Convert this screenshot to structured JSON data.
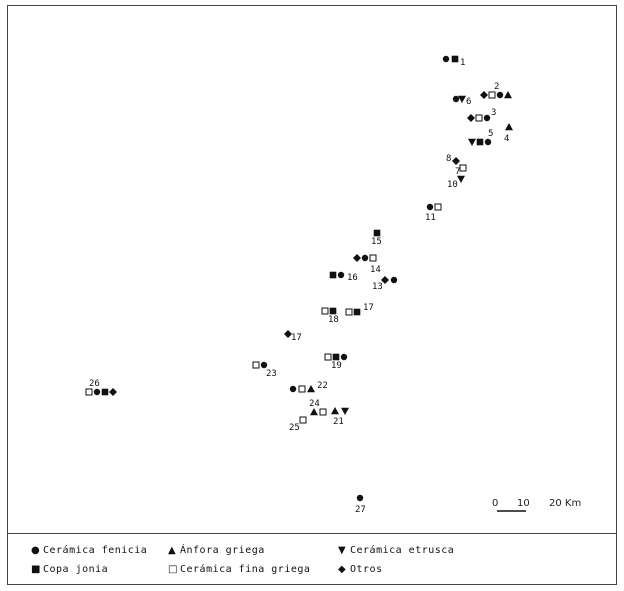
{
  "legend": [
    {
      "symbol": "●",
      "label": "Cerámica fenicia",
      "icon": "circle-icon"
    },
    {
      "symbol": "▲",
      "label": "Ánfora griega",
      "icon": "triangle-up-icon"
    },
    {
      "symbol": "▼",
      "label": "Cerámica etrusca",
      "icon": "triangle-down-icon"
    },
    {
      "symbol": "■",
      "label": "Copa jonia",
      "icon": "filled-square-icon"
    },
    {
      "symbol": "□",
      "label": "Cerámica fina griega",
      "icon": "open-square-icon"
    },
    {
      "symbol": "◆",
      "label": "Otros",
      "icon": "diamond-icon"
    }
  ],
  "scale_bar": {
    "labels": [
      "0",
      "10",
      "20 Km"
    ]
  },
  "sites": [
    {
      "number": "1",
      "finds": [
        "circle",
        "filled-square"
      ]
    },
    {
      "number": "2",
      "finds": [
        "diamond",
        "open-square",
        "circle",
        "triangle-up"
      ]
    },
    {
      "number": "3",
      "finds": [
        "diamond",
        "open-square",
        "circle"
      ]
    },
    {
      "number": "4",
      "finds": [
        "triangle-up"
      ]
    },
    {
      "number": "5",
      "finds": [
        "triangle-down",
        "filled-square",
        "circle"
      ]
    },
    {
      "number": "6",
      "finds": [
        "circle",
        "triangle-down"
      ]
    },
    {
      "number": "7",
      "finds": [
        "open-square"
      ]
    },
    {
      "number": "8",
      "finds": [
        "diamond"
      ]
    },
    {
      "number": "10",
      "finds": [
        "triangle-down"
      ]
    },
    {
      "number": "11",
      "finds": [
        "circle",
        "open-square"
      ]
    },
    {
      "number": "13",
      "finds": [
        "diamond",
        "circle"
      ]
    },
    {
      "number": "14",
      "finds": [
        "diamond",
        "circle",
        "open-square"
      ]
    },
    {
      "number": "15",
      "finds": [
        "filled-square"
      ]
    },
    {
      "number": "16",
      "finds": [
        "filled-square",
        "circle"
      ]
    },
    {
      "number": "17",
      "finds": [
        "open-square",
        "filled-square"
      ]
    },
    {
      "number": "17",
      "finds": [
        "diamond"
      ]
    },
    {
      "number": "18",
      "finds": [
        "open-square",
        "filled-square"
      ]
    },
    {
      "number": "19",
      "finds": [
        "open-square",
        "filled-square",
        "circle"
      ]
    },
    {
      "number": "21",
      "finds": [
        "triangle-up",
        "triangle-down"
      ]
    },
    {
      "number": "22",
      "finds": [
        "circle",
        "open-square",
        "triangle-up"
      ]
    },
    {
      "number": "23",
      "finds": [
        "open-square",
        "circle"
      ]
    },
    {
      "number": "24",
      "finds": [
        "triangle-up",
        "open-square"
      ]
    },
    {
      "number": "25",
      "finds": [
        "open-square"
      ]
    },
    {
      "number": "26",
      "finds": [
        "open-square",
        "circle",
        "filled-square",
        "diamond"
      ]
    },
    {
      "number": "27",
      "finds": [
        "circle"
      ]
    }
  ]
}
